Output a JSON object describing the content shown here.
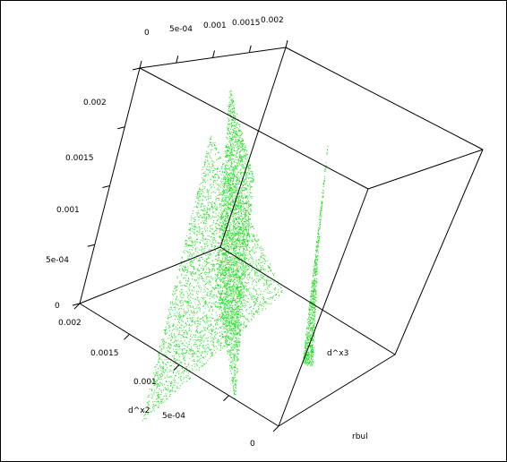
{
  "chart_data": {
    "type": "scatter",
    "projection": "3d",
    "colors": {
      "points": "#22dd22",
      "edges": "#000000",
      "background": "#ffffff"
    },
    "axes": {
      "top": {
        "ticks": [
          "0",
          "5e-04",
          "0.001",
          "0.0015",
          "0.002"
        ],
        "range": [
          0,
          0.002
        ]
      },
      "left": {
        "ticks": [
          "0",
          "5e-04",
          "0.001",
          "0.0015",
          "0.002"
        ],
        "range": [
          0,
          0.002
        ]
      },
      "front": {
        "title": "d^x2",
        "ticks": [
          "0",
          "5e-04",
          "0.001",
          "0.0015",
          "0.002"
        ],
        "range": [
          0,
          0.002
        ]
      },
      "right_labels": [
        "d^x3",
        "rbul"
      ]
    },
    "series": [
      {
        "polygon": [
          [
            0.02,
            0.98
          ],
          [
            0.55,
            0.62
          ],
          [
            0.28,
            0.18
          ]
        ],
        "density": 0.55
      },
      {
        "polygon": [
          [
            0.3,
            0.6
          ],
          [
            0.35,
            0.05
          ],
          [
            0.44,
            0.3
          ],
          [
            0.37,
            0.92
          ]
        ],
        "density": 0.75
      },
      {
        "polygon": [
          [
            0.62,
            0.82
          ],
          [
            0.66,
            0.82
          ],
          [
            0.68,
            0.5
          ],
          [
            0.72,
            0.18
          ]
        ],
        "density": 1.0
      }
    ]
  }
}
